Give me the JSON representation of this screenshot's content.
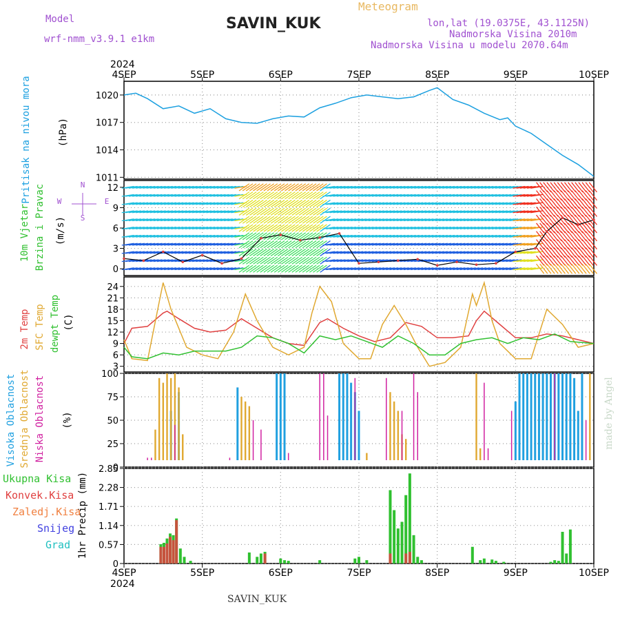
{
  "header": {
    "model_label": "Model",
    "model_name": "wrf-nmm_v3.9.1  e1km",
    "station": "SAVIN_KUK",
    "meteogram_label": "Meteogram",
    "lonlat": "lon,lat (19.0375E, 43.1125N)",
    "altitude": "Nadmorska Visina 2010m",
    "model_altitude": "Nadmorska Visina u modelu 2070.64m",
    "year_top": "2024",
    "year_bottom": "2024",
    "footer_station": "SAVIN_KUK",
    "credit": "made by Angel"
  },
  "colors": {
    "pressure": "#1ca0e0",
    "temp2m": "#e04040",
    "sfc": "#e0a830",
    "dewpt": "#30c030",
    "cloud_high": "#20a0e0",
    "cloud_mid": "#e0a830",
    "cloud_low": "#d020a0",
    "precip_total": "#30c030",
    "precip_conv": "#e04040",
    "wind_label": "#30c030",
    "arrow_purple": "#a050d0"
  },
  "chart_data": [
    {
      "type": "line",
      "panel": "pressure",
      "title_lines": [
        "Pritisak na nivou mora"
      ],
      "unit": "(hPa)",
      "x_days": [
        "4SEP",
        "5SEP",
        "6SEP",
        "7SEP",
        "8SEP",
        "9SEP",
        "10SEP"
      ],
      "ylim": [
        1010.8,
        1021.5
      ],
      "yticks": [
        1011,
        1014,
        1017,
        1020
      ],
      "series": [
        {
          "key": "pressure",
          "x": [
            0,
            0.15,
            0.3,
            0.5,
            0.7,
            0.9,
            1.1,
            1.3,
            1.5,
            1.7,
            1.9,
            2.1,
            2.3,
            2.5,
            2.7,
            2.9,
            3.1,
            3.3,
            3.5,
            3.7,
            3.9,
            4.0,
            4.2,
            4.4,
            4.6,
            4.8,
            4.9,
            5.0,
            5.2,
            5.4,
            5.6,
            5.8,
            6.0
          ],
          "y": [
            1020.0,
            1020.2,
            1019.6,
            1018.5,
            1018.8,
            1018.0,
            1018.5,
            1017.4,
            1017.0,
            1016.9,
            1017.4,
            1017.7,
            1017.6,
            1018.6,
            1019.1,
            1019.7,
            1020.0,
            1019.8,
            1019.6,
            1019.8,
            1020.5,
            1020.8,
            1019.5,
            1018.9,
            1018.0,
            1017.3,
            1017.5,
            1016.6,
            1015.8,
            1014.6,
            1013.4,
            1012.4,
            1011.1
          ]
        }
      ]
    },
    {
      "type": "line",
      "panel": "wind",
      "title_lines": [
        "10m Vjetar",
        "Brzina i Pravac"
      ],
      "unit": "(m/s)",
      "compass": [
        "N",
        "E",
        "S",
        "W"
      ],
      "ylim": [
        -1,
        13
      ],
      "yticks": [
        0,
        3,
        6,
        9,
        12
      ],
      "series": [
        {
          "key": "wind_speed",
          "x": [
            0,
            0.25,
            0.5,
            0.75,
            1.0,
            1.25,
            1.5,
            1.75,
            2.0,
            2.25,
            2.5,
            2.75,
            3.0,
            3.25,
            3.5,
            3.75,
            4.0,
            4.25,
            4.5,
            4.75,
            5.0,
            5.25,
            5.4,
            5.6,
            5.8,
            6.0
          ],
          "y": [
            1.5,
            1.2,
            2.5,
            1.0,
            2.0,
            0.8,
            1.5,
            4.5,
            5.0,
            4.2,
            4.6,
            5.2,
            0.8,
            1.0,
            1.2,
            1.4,
            0.5,
            1.0,
            0.6,
            0.8,
            2.5,
            3.0,
            5.5,
            7.5,
            6.5,
            7.2
          ]
        }
      ]
    },
    {
      "type": "line",
      "panel": "temperature",
      "title_lines": [
        "2m Temp",
        "SFC Temp",
        "dewpt Temp"
      ],
      "unit": "(C)",
      "ylim": [
        1.5,
        26.5
      ],
      "yticks": [
        3,
        6,
        9,
        12,
        15,
        18,
        21,
        24
      ],
      "series": [
        {
          "key": "temp2m",
          "x": [
            0,
            0.1,
            0.3,
            0.5,
            0.55,
            0.7,
            0.9,
            1.1,
            1.3,
            1.5,
            1.7,
            1.9,
            2.1,
            2.3,
            2.5,
            2.6,
            2.8,
            3.0,
            3.2,
            3.4,
            3.6,
            3.8,
            4.0,
            4.2,
            4.4,
            4.5,
            4.6,
            4.8,
            5.0,
            5.2,
            5.4,
            5.6,
            5.8,
            6.0
          ],
          "y": [
            9,
            13,
            13.5,
            17,
            17.5,
            15.5,
            13,
            12,
            12.5,
            15.5,
            13,
            10.5,
            9,
            8.5,
            14.5,
            15.5,
            13,
            11,
            9.5,
            10.5,
            14.5,
            13.5,
            10.5,
            10.5,
            11,
            15,
            17.5,
            14,
            10.5,
            10.5,
            11.5,
            11,
            10,
            9
          ]
        },
        {
          "key": "sfc",
          "x": [
            0,
            0.1,
            0.3,
            0.45,
            0.5,
            0.6,
            0.8,
            1.0,
            1.2,
            1.4,
            1.55,
            1.7,
            1.9,
            2.1,
            2.3,
            2.4,
            2.5,
            2.65,
            2.8,
            3.0,
            3.15,
            3.3,
            3.45,
            3.6,
            3.75,
            3.9,
            4.1,
            4.3,
            4.45,
            4.5,
            4.6,
            4.7,
            4.8,
            5.0,
            5.2,
            5.4,
            5.6,
            5.8,
            6.0
          ],
          "y": [
            10,
            5,
            4.5,
            20,
            25,
            18,
            8,
            6,
            5,
            12,
            22,
            15,
            8,
            6,
            8,
            17,
            24,
            20,
            9,
            5,
            5,
            14,
            19,
            14,
            8,
            3,
            4,
            8,
            22,
            19,
            25,
            15,
            9,
            5,
            5,
            18,
            14,
            8,
            9
          ]
        },
        {
          "key": "dewpt",
          "x": [
            0,
            0.1,
            0.3,
            0.5,
            0.7,
            0.9,
            1.1,
            1.3,
            1.5,
            1.7,
            1.9,
            2.1,
            2.3,
            2.5,
            2.7,
            2.9,
            3.1,
            3.3,
            3.5,
            3.7,
            3.9,
            4.1,
            4.3,
            4.5,
            4.7,
            4.9,
            5.1,
            5.3,
            5.5,
            5.7,
            6.0
          ],
          "y": [
            8,
            5.5,
            5,
            6.5,
            6,
            7,
            7,
            7,
            8,
            11,
            10.5,
            9,
            6.5,
            11,
            10,
            11,
            9.5,
            8,
            11,
            9,
            6,
            6,
            9,
            10,
            10.5,
            9,
            10.5,
            10,
            11.5,
            9.5,
            9
          ]
        }
      ]
    },
    {
      "type": "bar",
      "panel": "cloud",
      "title_lines": [
        "Visoka Oblacnost",
        "Srednja Oblacnost",
        "Niska  Oblacnost"
      ],
      "unit": "(%)",
      "ylim": [
        0,
        100
      ],
      "yticks": [
        0,
        25,
        50,
        75,
        100
      ],
      "series": [
        {
          "key": "high",
          "x": [
            0.6,
            0.7,
            1.45,
            1.95,
            2.0,
            2.05,
            2.75,
            2.8,
            2.85,
            2.9,
            2.95,
            3.0,
            5.0,
            5.05,
            5.1,
            5.15,
            5.2,
            5.25,
            5.3,
            5.35,
            5.4,
            5.45,
            5.5,
            5.55,
            5.6,
            5.65,
            5.7,
            5.75,
            5.8,
            5.85
          ],
          "y": [
            60,
            80,
            85,
            100,
            100,
            100,
            100,
            100,
            100,
            90,
            80,
            60,
            70,
            100,
            100,
            100,
            100,
            100,
            100,
            100,
            100,
            100,
            100,
            100,
            100,
            100,
            100,
            95,
            60,
            100
          ]
        },
        {
          "key": "mid",
          "x": [
            0.4,
            0.45,
            0.5,
            0.55,
            0.6,
            0.65,
            0.7,
            0.75,
            1.5,
            1.55,
            1.6,
            3.1,
            3.4,
            3.45,
            3.5,
            3.55,
            3.6,
            4.5,
            4.55,
            5.95
          ],
          "y": [
            40,
            95,
            90,
            100,
            95,
            100,
            85,
            35,
            75,
            70,
            65,
            15,
            80,
            70,
            60,
            35,
            30,
            100,
            20,
            100
          ]
        },
        {
          "key": "low",
          "x": [
            0.3,
            0.35,
            0.65,
            1.35,
            1.65,
            1.75,
            2.1,
            2.5,
            2.55,
            2.6,
            2.95,
            3.35,
            3.55,
            3.7,
            3.75,
            4.6,
            4.65,
            4.95,
            5.5,
            5.9
          ],
          "y": [
            10,
            10,
            45,
            10,
            50,
            40,
            15,
            100,
            100,
            55,
            95,
            95,
            60,
            100,
            80,
            90,
            20,
            60,
            100,
            50
          ]
        }
      ]
    },
    {
      "type": "bar",
      "panel": "precip",
      "title_lines": [
        "Ukupna Kisa",
        "Konvek.Kisa",
        "Zaledj.Kisa",
        "Snijeg",
        "Grad"
      ],
      "unit": "1hr Precip (mm)",
      "ylim": [
        0,
        2.85
      ],
      "yticks": [
        0,
        0.57,
        1.14,
        1.71,
        2.28,
        2.85
      ],
      "series": [
        {
          "key": "total",
          "x": [
            0.47,
            0.51,
            0.55,
            0.59,
            0.63,
            0.67,
            0.72,
            0.77,
            0.85,
            1.6,
            1.7,
            1.75,
            1.8,
            2.0,
            2.05,
            2.1,
            2.5,
            2.95,
            3.0,
            3.1,
            3.4,
            3.45,
            3.5,
            3.55,
            3.6,
            3.65,
            3.7,
            3.75,
            3.8,
            4.45,
            4.55,
            4.6,
            4.7,
            4.75,
            4.85,
            5.45,
            5.5,
            5.55,
            5.6,
            5.65,
            5.7
          ],
          "y": [
            0.58,
            0.62,
            0.75,
            0.9,
            0.85,
            1.35,
            0.45,
            0.2,
            0.08,
            0.33,
            0.2,
            0.3,
            0.35,
            0.15,
            0.1,
            0.08,
            0.1,
            0.15,
            0.2,
            0.1,
            2.2,
            1.6,
            1.05,
            1.25,
            2.05,
            2.7,
            0.85,
            0.2,
            0.1,
            0.5,
            0.1,
            0.15,
            0.12,
            0.08,
            0.05,
            0.05,
            0.1,
            0.08,
            0.95,
            0.3,
            1.02
          ]
        },
        {
          "key": "conv",
          "x": [
            0.47,
            0.51,
            0.55,
            0.59,
            0.63,
            0.67,
            1.8,
            3.4,
            3.6,
            3.65
          ],
          "y": [
            0.5,
            0.5,
            0.6,
            0.8,
            0.7,
            1.3,
            0.3,
            0.3,
            0.3,
            0.35
          ]
        }
      ]
    }
  ]
}
